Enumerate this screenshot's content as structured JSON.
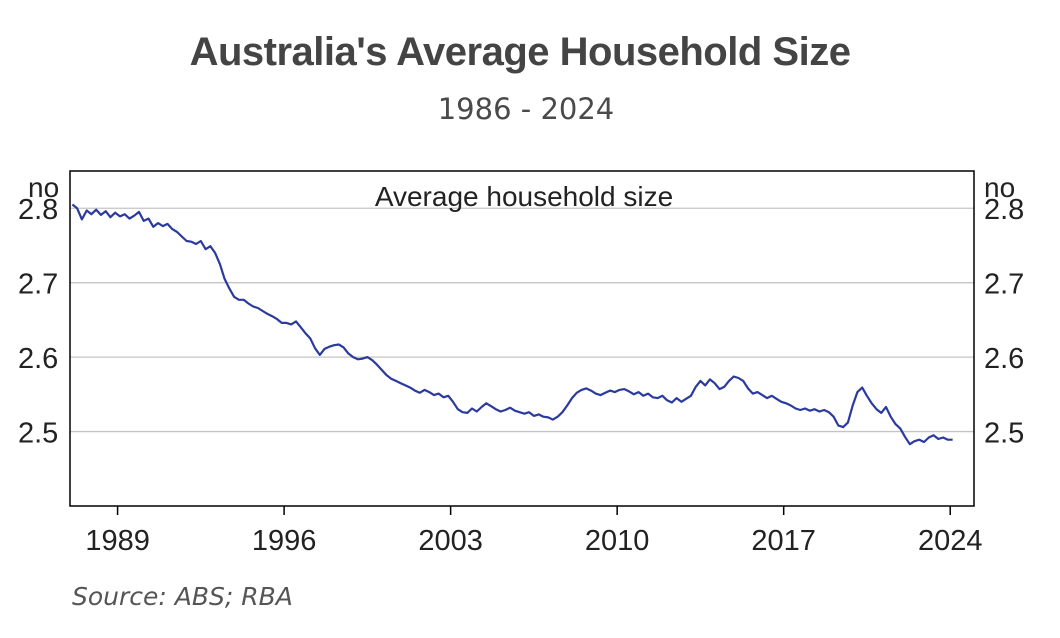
{
  "title": "Australia's Average Household Size",
  "subtitle": "1986 - 2024",
  "source": "Source: ABS; RBA",
  "colors": {
    "line": "#2b3a9e",
    "grid": "#c4c4c4",
    "frame": "#000000",
    "title": "#444444"
  },
  "chart_data": {
    "type": "line",
    "title": "Average household size",
    "unit_left": "no",
    "unit_right": "no",
    "xlim": [
      1987.0,
      2025.0
    ],
    "ylim": [
      2.4,
      2.85
    ],
    "grid": true,
    "x_ticks": [
      1989,
      1996,
      2003,
      2010,
      2017,
      2024
    ],
    "x_tick_labels": [
      "1989",
      "1996",
      "2003",
      "2010",
      "2017",
      "2024"
    ],
    "y_ticks": [
      2.5,
      2.6,
      2.7,
      2.8
    ],
    "y_tick_labels": [
      "2.5",
      "2.6",
      "2.7",
      "2.8"
    ],
    "series": [
      {
        "name": "",
        "points": [
          [
            1987.1,
            2.805
          ],
          [
            1987.3,
            2.8
          ],
          [
            1987.5,
            2.785
          ],
          [
            1987.7,
            2.797
          ],
          [
            1987.9,
            2.792
          ],
          [
            1988.1,
            2.798
          ],
          [
            1988.3,
            2.791
          ],
          [
            1988.5,
            2.796
          ],
          [
            1988.7,
            2.788
          ],
          [
            1988.9,
            2.794
          ],
          [
            1989.1,
            2.789
          ],
          [
            1989.3,
            2.792
          ],
          [
            1989.5,
            2.786
          ],
          [
            1989.7,
            2.79
          ],
          [
            1989.9,
            2.795
          ],
          [
            1990.1,
            2.783
          ],
          [
            1990.3,
            2.786
          ],
          [
            1990.5,
            2.775
          ],
          [
            1990.7,
            2.78
          ],
          [
            1990.9,
            2.776
          ],
          [
            1991.1,
            2.779
          ],
          [
            1991.3,
            2.772
          ],
          [
            1991.5,
            2.768
          ],
          [
            1991.7,
            2.762
          ],
          [
            1991.9,
            2.756
          ],
          [
            1992.1,
            2.755
          ],
          [
            1992.3,
            2.752
          ],
          [
            1992.5,
            2.756
          ],
          [
            1992.7,
            2.745
          ],
          [
            1992.9,
            2.749
          ],
          [
            1993.1,
            2.74
          ],
          [
            1993.3,
            2.725
          ],
          [
            1993.5,
            2.705
          ],
          [
            1993.7,
            2.692
          ],
          [
            1993.9,
            2.681
          ],
          [
            1994.1,
            2.677
          ],
          [
            1994.3,
            2.677
          ],
          [
            1994.5,
            2.672
          ],
          [
            1994.7,
            2.668
          ],
          [
            1994.9,
            2.666
          ],
          [
            1995.1,
            2.662
          ],
          [
            1995.3,
            2.658
          ],
          [
            1995.5,
            2.655
          ],
          [
            1995.7,
            2.651
          ],
          [
            1995.9,
            2.646
          ],
          [
            1996.1,
            2.646
          ],
          [
            1996.3,
            2.644
          ],
          [
            1996.5,
            2.648
          ],
          [
            1996.7,
            2.64
          ],
          [
            1996.9,
            2.632
          ],
          [
            1997.1,
            2.625
          ],
          [
            1997.3,
            2.612
          ],
          [
            1997.5,
            2.603
          ],
          [
            1997.7,
            2.611
          ],
          [
            1997.9,
            2.614
          ],
          [
            1998.1,
            2.616
          ],
          [
            1998.3,
            2.617
          ],
          [
            1998.5,
            2.613
          ],
          [
            1998.7,
            2.605
          ],
          [
            1998.9,
            2.6
          ],
          [
            1999.1,
            2.597
          ],
          [
            1999.3,
            2.598
          ],
          [
            1999.5,
            2.6
          ],
          [
            1999.7,
            2.596
          ],
          [
            1999.9,
            2.59
          ],
          [
            2000.1,
            2.583
          ],
          [
            2000.3,
            2.576
          ],
          [
            2000.5,
            2.571
          ],
          [
            2000.7,
            2.568
          ],
          [
            2000.9,
            2.565
          ],
          [
            2001.1,
            2.562
          ],
          [
            2001.3,
            2.559
          ],
          [
            2001.5,
            2.555
          ],
          [
            2001.7,
            2.552
          ],
          [
            2001.9,
            2.556
          ],
          [
            2002.1,
            2.553
          ],
          [
            2002.3,
            2.549
          ],
          [
            2002.5,
            2.551
          ],
          [
            2002.7,
            2.546
          ],
          [
            2002.9,
            2.548
          ],
          [
            2003.1,
            2.54
          ],
          [
            2003.3,
            2.53
          ],
          [
            2003.5,
            2.526
          ],
          [
            2003.7,
            2.525
          ],
          [
            2003.9,
            2.531
          ],
          [
            2004.1,
            2.527
          ],
          [
            2004.3,
            2.533
          ],
          [
            2004.5,
            2.538
          ],
          [
            2004.7,
            2.534
          ],
          [
            2004.9,
            2.53
          ],
          [
            2005.1,
            2.527
          ],
          [
            2005.3,
            2.529
          ],
          [
            2005.5,
            2.532
          ],
          [
            2005.7,
            2.528
          ],
          [
            2005.9,
            2.526
          ],
          [
            2006.1,
            2.524
          ],
          [
            2006.3,
            2.526
          ],
          [
            2006.5,
            2.521
          ],
          [
            2006.7,
            2.523
          ],
          [
            2006.9,
            2.52
          ],
          [
            2007.1,
            2.519
          ],
          [
            2007.3,
            2.516
          ],
          [
            2007.5,
            2.52
          ],
          [
            2007.7,
            2.526
          ],
          [
            2007.9,
            2.535
          ],
          [
            2008.1,
            2.545
          ],
          [
            2008.3,
            2.552
          ],
          [
            2008.5,
            2.556
          ],
          [
            2008.7,
            2.558
          ],
          [
            2008.9,
            2.555
          ],
          [
            2009.1,
            2.551
          ],
          [
            2009.3,
            2.549
          ],
          [
            2009.5,
            2.552
          ],
          [
            2009.7,
            2.555
          ],
          [
            2009.9,
            2.553
          ],
          [
            2010.1,
            2.556
          ],
          [
            2010.3,
            2.557
          ],
          [
            2010.5,
            2.554
          ],
          [
            2010.7,
            2.55
          ],
          [
            2010.9,
            2.553
          ],
          [
            2011.1,
            2.548
          ],
          [
            2011.3,
            2.551
          ],
          [
            2011.5,
            2.546
          ],
          [
            2011.7,
            2.545
          ],
          [
            2011.9,
            2.548
          ],
          [
            2012.1,
            2.542
          ],
          [
            2012.3,
            2.539
          ],
          [
            2012.5,
            2.545
          ],
          [
            2012.7,
            2.54
          ],
          [
            2012.9,
            2.544
          ],
          [
            2013.1,
            2.548
          ],
          [
            2013.3,
            2.56
          ],
          [
            2013.5,
            2.568
          ],
          [
            2013.7,
            2.562
          ],
          [
            2013.9,
            2.57
          ],
          [
            2014.1,
            2.565
          ],
          [
            2014.3,
            2.557
          ],
          [
            2014.5,
            2.56
          ],
          [
            2014.7,
            2.568
          ],
          [
            2014.9,
            2.574
          ],
          [
            2015.1,
            2.572
          ],
          [
            2015.3,
            2.568
          ],
          [
            2015.5,
            2.558
          ],
          [
            2015.7,
            2.551
          ],
          [
            2015.9,
            2.553
          ],
          [
            2016.1,
            2.549
          ],
          [
            2016.3,
            2.545
          ],
          [
            2016.5,
            2.548
          ],
          [
            2016.7,
            2.544
          ],
          [
            2016.9,
            2.54
          ],
          [
            2017.1,
            2.538
          ],
          [
            2017.3,
            2.535
          ],
          [
            2017.5,
            2.531
          ],
          [
            2017.7,
            2.529
          ],
          [
            2017.9,
            2.531
          ],
          [
            2018.1,
            2.528
          ],
          [
            2018.3,
            2.53
          ],
          [
            2018.5,
            2.527
          ],
          [
            2018.7,
            2.529
          ],
          [
            2018.9,
            2.526
          ],
          [
            2019.1,
            2.52
          ],
          [
            2019.3,
            2.508
          ],
          [
            2019.5,
            2.506
          ],
          [
            2019.7,
            2.512
          ],
          [
            2019.9,
            2.535
          ],
          [
            2020.1,
            2.553
          ],
          [
            2020.3,
            2.559
          ],
          [
            2020.5,
            2.548
          ],
          [
            2020.7,
            2.538
          ],
          [
            2020.9,
            2.53
          ],
          [
            2021.1,
            2.525
          ],
          [
            2021.3,
            2.533
          ],
          [
            2021.5,
            2.52
          ],
          [
            2021.7,
            2.51
          ],
          [
            2021.9,
            2.504
          ],
          [
            2022.1,
            2.493
          ],
          [
            2022.3,
            2.483
          ],
          [
            2022.5,
            2.487
          ],
          [
            2022.7,
            2.489
          ],
          [
            2022.9,
            2.486
          ],
          [
            2023.1,
            2.492
          ],
          [
            2023.3,
            2.495
          ],
          [
            2023.5,
            2.49
          ],
          [
            2023.7,
            2.492
          ],
          [
            2023.9,
            2.489
          ],
          [
            2024.1,
            2.489
          ]
        ]
      }
    ]
  }
}
